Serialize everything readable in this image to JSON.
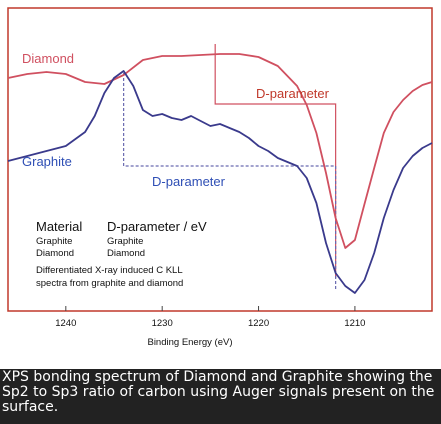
{
  "chart_data": {
    "type": "line",
    "xlabel": "Binding Energy (eV)",
    "ylabel": "",
    "x_reversed": true,
    "xlim": [
      1246,
      1202
    ],
    "x_ticks": [
      1240,
      1230,
      1220,
      1210
    ],
    "grid": false,
    "series": [
      {
        "name": "Diamond",
        "color": "#d05060",
        "points": [
          [
            1246,
            70
          ],
          [
            1244,
            66
          ],
          [
            1242,
            64
          ],
          [
            1240,
            66
          ],
          [
            1238,
            74
          ],
          [
            1236,
            76
          ],
          [
            1234,
            67
          ],
          [
            1232,
            52
          ],
          [
            1230,
            48
          ],
          [
            1228,
            48
          ],
          [
            1226,
            47
          ],
          [
            1224,
            46
          ],
          [
            1222,
            46
          ],
          [
            1220,
            49
          ],
          [
            1218,
            58
          ],
          [
            1216,
            78
          ],
          [
            1215,
            97
          ],
          [
            1214,
            125
          ],
          [
            1213,
            165
          ],
          [
            1212,
            210
          ],
          [
            1211,
            240
          ],
          [
            1210,
            232
          ],
          [
            1209,
            196
          ],
          [
            1208,
            160
          ],
          [
            1207,
            125
          ],
          [
            1206,
            104
          ],
          [
            1205,
            92
          ],
          [
            1204,
            83
          ],
          [
            1203,
            77
          ],
          [
            1202,
            74
          ]
        ]
      },
      {
        "name": "Graphite",
        "color": "#3a3a8c",
        "points": [
          [
            1246,
            153
          ],
          [
            1244,
            148
          ],
          [
            1242,
            143
          ],
          [
            1240,
            138
          ],
          [
            1238,
            124
          ],
          [
            1237,
            108
          ],
          [
            1236,
            85
          ],
          [
            1235,
            70
          ],
          [
            1234,
            63
          ],
          [
            1233,
            78
          ],
          [
            1232,
            102
          ],
          [
            1231,
            108
          ],
          [
            1230,
            106
          ],
          [
            1229,
            110
          ],
          [
            1228,
            112
          ],
          [
            1227,
            108
          ],
          [
            1226,
            113
          ],
          [
            1225,
            118
          ],
          [
            1224,
            116
          ],
          [
            1223,
            120
          ],
          [
            1222,
            124
          ],
          [
            1221,
            130
          ],
          [
            1220,
            138
          ],
          [
            1219,
            143
          ],
          [
            1218,
            150
          ],
          [
            1216,
            158
          ],
          [
            1215,
            170
          ],
          [
            1214,
            195
          ],
          [
            1213,
            235
          ],
          [
            1212,
            265
          ],
          [
            1211,
            278
          ],
          [
            1210,
            285
          ],
          [
            1209,
            272
          ],
          [
            1208,
            245
          ],
          [
            1207,
            210
          ],
          [
            1206,
            182
          ],
          [
            1205,
            160
          ],
          [
            1204,
            148
          ],
          [
            1203,
            140
          ],
          [
            1202,
            135
          ]
        ]
      }
    ],
    "reference_lines": [
      {
        "name": "Diamond D-parameter",
        "color": "#d05060",
        "x_from": 1224.5,
        "x_to": 1212
      },
      {
        "name": "Graphite D-parameter",
        "color": "#6a6ab0",
        "x_from": 1234,
        "x_to": 1212
      }
    ],
    "annotations": {
      "diamond_label": "Diamond",
      "graphite_label": "Graphite",
      "diamond_dparam": "D-parameter",
      "graphite_dparam": "D-parameter",
      "table_header_material": "Material",
      "table_header_dparam": "D-parameter / eV",
      "table_rows": [
        {
          "material": "Graphite",
          "value": "Graphite"
        },
        {
          "material": "Diamond",
          "value": "Diamond"
        }
      ],
      "note_line1": "Differentiated X-ray induced C KLL",
      "note_line2": "spectra from graphite and diamond"
    }
  },
  "caption": "XPS bonding spectrum of Diamond and Graphite showing the Sp2 to Sp3 ratio of carbon using Auger signals present on the surface."
}
